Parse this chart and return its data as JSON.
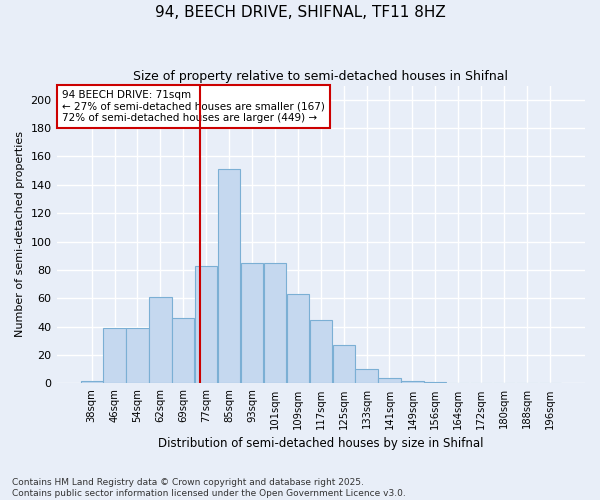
{
  "title": "94, BEECH DRIVE, SHIFNAL, TF11 8HZ",
  "subtitle": "Size of property relative to semi-detached houses in Shifnal",
  "xlabel": "Distribution of semi-detached houses by size in Shifnal",
  "ylabel": "Number of semi-detached properties",
  "categories": [
    "38sqm",
    "46sqm",
    "54sqm",
    "62sqm",
    "69sqm",
    "77sqm",
    "85sqm",
    "93sqm",
    "101sqm",
    "109sqm",
    "117sqm",
    "125sqm",
    "133sqm",
    "141sqm",
    "149sqm",
    "156sqm",
    "164sqm",
    "172sqm",
    "180sqm",
    "188sqm",
    "196sqm"
  ],
  "bar_heights": [
    2,
    39,
    39,
    61,
    46,
    83,
    151,
    85,
    85,
    63,
    45,
    27,
    10,
    4,
    2,
    1,
    0,
    0,
    0,
    0,
    0
  ],
  "bar_color": "#c5d8ef",
  "bar_edge_color": "#7bafd4",
  "property_sqm": 71,
  "property_line_bin_idx": 4.75,
  "pct_smaller": 27,
  "count_smaller": 167,
  "pct_larger": 72,
  "count_larger": 449,
  "annotation_box_color": "#cc0000",
  "background_color": "#e8eef8",
  "plot_bg_color": "#e8eef8",
  "footer": "Contains HM Land Registry data © Crown copyright and database right 2025.\nContains public sector information licensed under the Open Government Licence v3.0.",
  "ylim": [
    0,
    210
  ],
  "yticks": [
    0,
    20,
    40,
    60,
    80,
    100,
    120,
    140,
    160,
    180,
    200
  ]
}
